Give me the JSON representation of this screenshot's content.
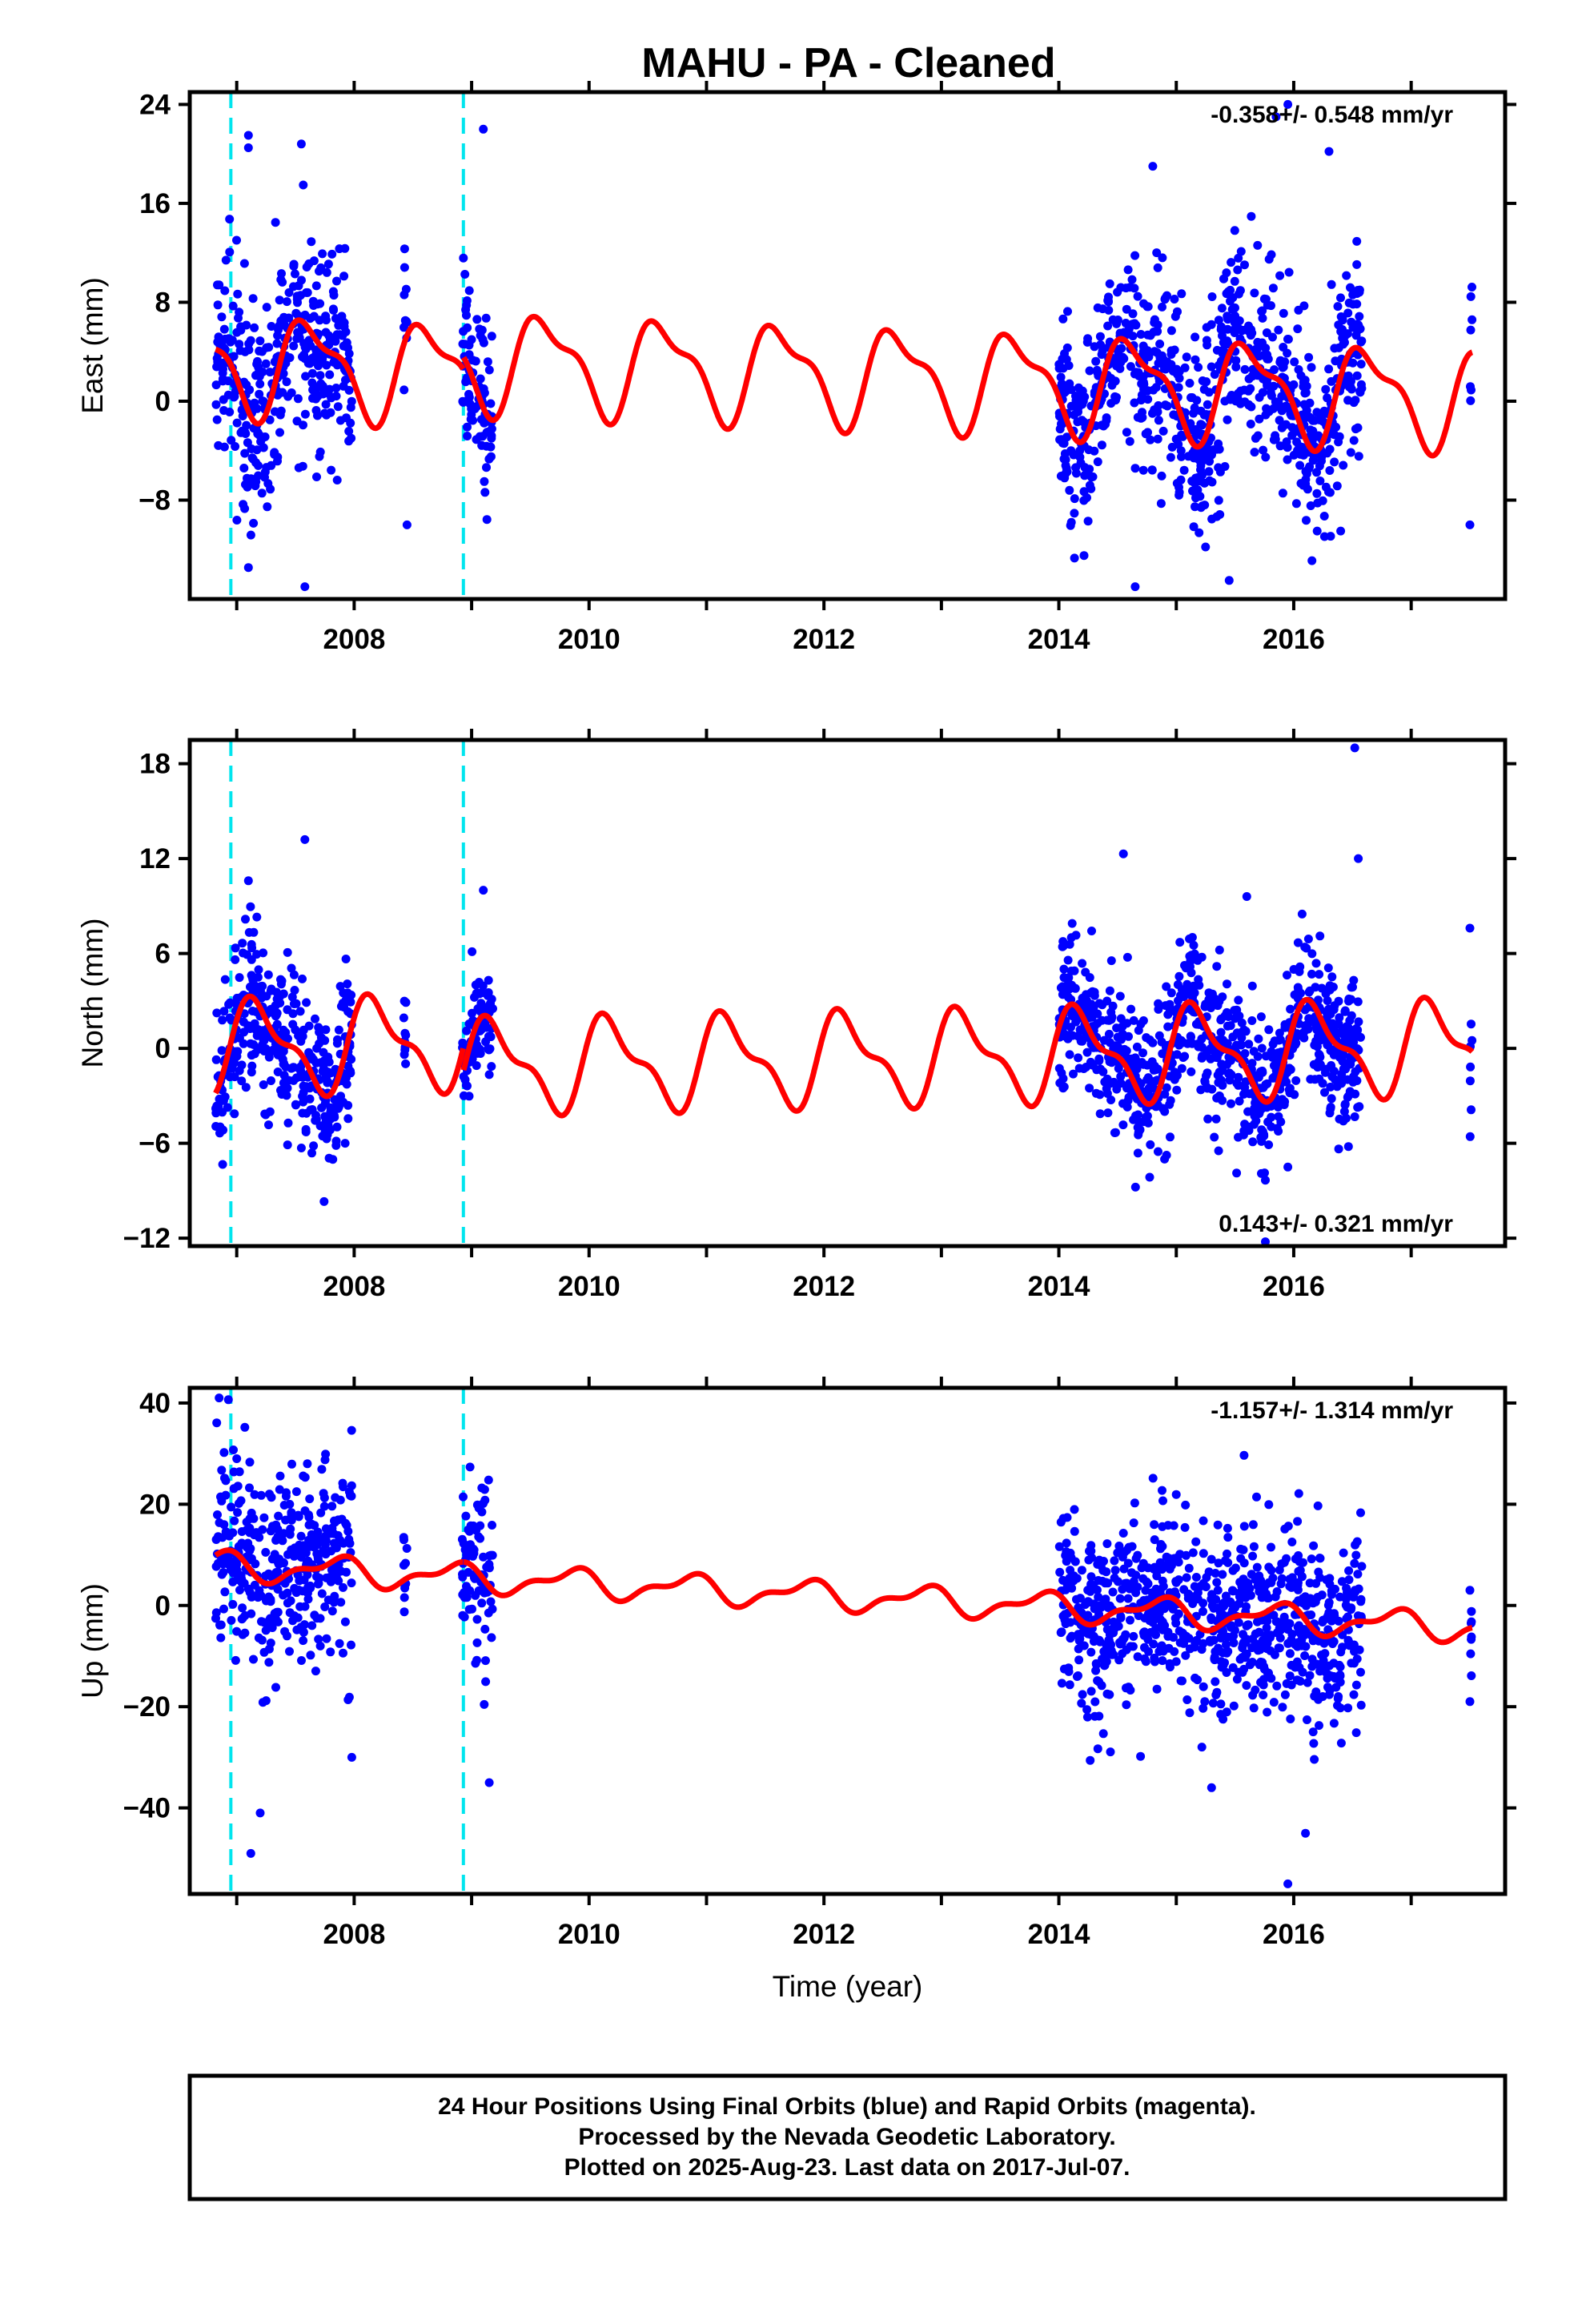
{
  "title": "MAHU  - PA - Cleaned",
  "colors": {
    "final_orbits": "#0000ff",
    "model": "#ff0000",
    "break_line": "#00e5ee",
    "axis": "#000000"
  },
  "chart_data": [
    {
      "type": "scatter",
      "id": "east",
      "ylabel": "East (mm)",
      "xlabel": "",
      "xlim": [
        2006.6,
        2017.8
      ],
      "ylim": [
        -16,
        25
      ],
      "yticks": [
        -8,
        0,
        8,
        16,
        24
      ],
      "xticks": [
        2008,
        2010,
        2012,
        2014,
        2016
      ],
      "rate_label": "-0.358+/- 0.548 mm/yr",
      "rate_position": "top-right",
      "breaks": [
        2006.95,
        2008.93
      ],
      "model": {
        "offset": 1.2,
        "rate": -0.358,
        "annual_amp": 3.6,
        "annual_phase": 2.3,
        "semi_amp": 1.4,
        "semi_phase": 0.5,
        "step_at": 2008.93,
        "step": 1.0
      },
      "data_segments": [
        {
          "start": 2006.82,
          "end": 2007.98,
          "sigma": 4.0
        },
        {
          "start": 2008.42,
          "end": 2008.45,
          "sigma": 3.0
        },
        {
          "start": 2008.92,
          "end": 2009.18,
          "sigma": 3.5
        },
        {
          "start": 2014.0,
          "end": 2016.58,
          "sigma": 3.8
        },
        {
          "start": 2017.5,
          "end": 2017.52,
          "sigma": 6.0
        }
      ],
      "outliers": [
        [
          2007.1,
          21.5
        ],
        [
          2007.1,
          20.5
        ],
        [
          2007.55,
          20.8
        ],
        [
          2009.1,
          22.0
        ],
        [
          2014.8,
          19.0
        ],
        [
          2015.85,
          23.0
        ],
        [
          2015.95,
          24.0
        ],
        [
          2016.3,
          20.2
        ],
        [
          2007.58,
          -15
        ],
        [
          2015.45,
          -14.5
        ],
        [
          2014.65,
          -15
        ],
        [
          2008.45,
          -10
        ],
        [
          2017.5,
          -10
        ],
        [
          2016.4,
          -10.5
        ]
      ]
    },
    {
      "type": "scatter",
      "id": "north",
      "ylabel": "North (mm)",
      "xlabel": "",
      "xlim": [
        2006.6,
        2017.8
      ],
      "ylim": [
        -12.5,
        19.5
      ],
      "yticks": [
        -12,
        -6,
        0,
        6,
        12,
        18
      ],
      "xticks": [
        2008,
        2010,
        2012,
        2014,
        2016
      ],
      "rate_label": "0.143+/- 0.321 mm/yr",
      "rate_position": "bottom-right",
      "breaks": [
        2006.95,
        2008.93
      ],
      "model": {
        "offset": 0.8,
        "rate": 0.143,
        "annual_amp": 2.6,
        "annual_phase": -1.2,
        "semi_amp": 1.1,
        "semi_phase": -0.8,
        "step_at": 2008.93,
        "step": -1.5
      },
      "data_segments": [
        {
          "start": 2006.82,
          "end": 2007.98,
          "sigma": 2.4
        },
        {
          "start": 2008.42,
          "end": 2008.45,
          "sigma": 1.5
        },
        {
          "start": 2008.92,
          "end": 2009.18,
          "sigma": 1.8
        },
        {
          "start": 2014.0,
          "end": 2016.58,
          "sigma": 2.2
        },
        {
          "start": 2017.5,
          "end": 2017.52,
          "sigma": 3.0
        }
      ],
      "outliers": [
        [
          2007.58,
          13.2
        ],
        [
          2014.55,
          12.3
        ],
        [
          2016.52,
          19.0
        ],
        [
          2016.55,
          12.0
        ],
        [
          2015.6,
          9.6
        ],
        [
          2009.1,
          10.0
        ],
        [
          2007.1,
          10.6
        ],
        [
          2017.5,
          7.6
        ],
        [
          2015.95,
          -7.5
        ],
        [
          2014.9,
          -7.0
        ],
        [
          2007.55,
          -6.3
        ]
      ]
    },
    {
      "type": "scatter",
      "id": "up",
      "ylabel": "Up (mm)",
      "xlabel": "Time (year)",
      "xlim": [
        2006.6,
        2017.8
      ],
      "ylim": [
        -57,
        43
      ],
      "yticks": [
        -40,
        -20,
        0,
        20,
        40
      ],
      "xticks": [
        2008,
        2010,
        2012,
        2014,
        2016
      ],
      "rate_label": "-1.157+/- 1.314 mm/yr",
      "rate_position": "top-right",
      "breaks": [
        2006.95,
        2008.93
      ],
      "model": {
        "offset": 2.0,
        "rate": -1.157,
        "annual_amp": 2.4,
        "annual_phase": 1.0,
        "semi_amp": 1.2,
        "semi_phase": 0.3,
        "step_at": 2008.93,
        "step": 0.0
      },
      "data_segments": [
        {
          "start": 2006.82,
          "end": 2007.98,
          "sigma": 10.0
        },
        {
          "start": 2008.42,
          "end": 2008.45,
          "sigma": 6.0
        },
        {
          "start": 2008.92,
          "end": 2009.18,
          "sigma": 9.0
        },
        {
          "start": 2014.0,
          "end": 2016.58,
          "sigma": 9.0
        },
        {
          "start": 2017.5,
          "end": 2017.52,
          "sigma": 10.0
        }
      ],
      "outliers": [
        [
          2006.85,
          41
        ],
        [
          2007.0,
          29
        ],
        [
          2007.12,
          -49
        ],
        [
          2007.2,
          -41
        ],
        [
          2007.98,
          -30
        ],
        [
          2009.15,
          -35
        ],
        [
          2015.95,
          -55
        ],
        [
          2016.1,
          -45
        ],
        [
          2015.3,
          -36
        ],
        [
          2017.5,
          3
        ],
        [
          2017.5,
          -19
        ]
      ]
    }
  ],
  "footer": {
    "line1": "24 Hour Positions Using Final Orbits (blue) and Rapid Orbits (magenta).",
    "line2": "Processed by the Nevada Geodetic Laboratory.",
    "line3": "Plotted on 2025-Aug-23. Last data on 2017-Jul-07."
  }
}
